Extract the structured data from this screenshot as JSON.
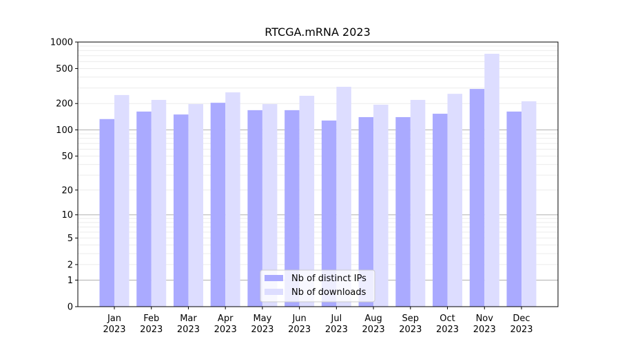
{
  "chart_data": {
    "type": "bar",
    "title": "RTCGA.mRNA 2023",
    "xlabel": "",
    "ylabel": "",
    "yscale": "log10(1+y)",
    "ylim": [
      0,
      1000
    ],
    "yticks": [
      0,
      1,
      2,
      5,
      10,
      20,
      50,
      100,
      200,
      500,
      1000
    ],
    "grid": true,
    "legend_position": "bottom-center",
    "categories": [
      "Jan\n2023",
      "Feb\n2023",
      "Mar\n2023",
      "Apr\n2023",
      "May\n2023",
      "Jun\n2023",
      "Jul\n2023",
      "Aug\n2023",
      "Sep\n2023",
      "Oct\n2023",
      "Nov\n2023",
      "Dec\n2023"
    ],
    "series": [
      {
        "name": "Nb of distinct IPs",
        "color": "#aaaaff",
        "values": [
          133,
          162,
          150,
          204,
          168,
          168,
          128,
          140,
          140,
          153,
          293,
          162
        ]
      },
      {
        "name": "Nb of downloads",
        "color": "#ddddff",
        "values": [
          250,
          220,
          197,
          268,
          197,
          245,
          310,
          194,
          220,
          258,
          736,
          212
        ]
      }
    ]
  }
}
